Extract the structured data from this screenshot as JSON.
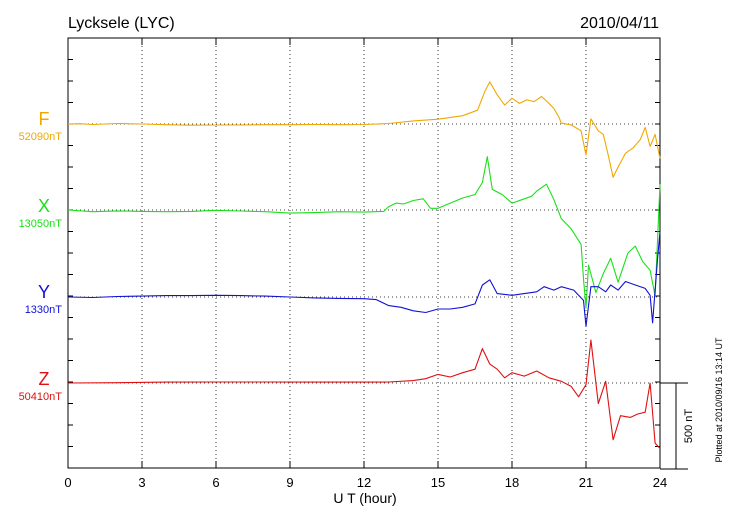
{
  "title": "Lycksele (LYC)",
  "date": "2010/04/11",
  "footnote": "Plotted at 2010/09/16 13:14 UT",
  "chart_data": {
    "type": "line",
    "xlabel": "U T (hour)",
    "xlim": [
      0,
      24
    ],
    "xticks": [
      0,
      3,
      6,
      9,
      12,
      15,
      18,
      21,
      24
    ],
    "xtick_labels": [
      "0",
      "3",
      "6",
      "9",
      "12",
      "15",
      "18",
      "21",
      "24"
    ],
    "grid": true,
    "scale_bar": {
      "label": "500 nT",
      "value_nT": 500
    },
    "series": [
      {
        "name": "F",
        "baseline_label": "52090nT",
        "color": "#f0a800",
        "points": [
          [
            0,
            0
          ],
          [
            0.5,
            2
          ],
          [
            1,
            -3
          ],
          [
            2,
            3
          ],
          [
            3,
            0
          ],
          [
            4,
            -4
          ],
          [
            5,
            -7
          ],
          [
            6,
            -6
          ],
          [
            7,
            -5
          ],
          [
            8,
            -4
          ],
          [
            9,
            -4
          ],
          [
            10,
            -3
          ],
          [
            11,
            -4
          ],
          [
            12,
            -3
          ],
          [
            13,
            3
          ],
          [
            14,
            18
          ],
          [
            15,
            28
          ],
          [
            16,
            48
          ],
          [
            16.6,
            80
          ],
          [
            16.9,
            190
          ],
          [
            17.1,
            245
          ],
          [
            17.4,
            170
          ],
          [
            17.7,
            110
          ],
          [
            18,
            150
          ],
          [
            18.3,
            120
          ],
          [
            18.6,
            140
          ],
          [
            18.9,
            130
          ],
          [
            19.2,
            160
          ],
          [
            19.5,
            120
          ],
          [
            19.7,
            90
          ],
          [
            19.9,
            40
          ],
          [
            20,
            5
          ],
          [
            20.4,
            -5
          ],
          [
            20.8,
            -40
          ],
          [
            21,
            -180
          ],
          [
            21.2,
            30
          ],
          [
            21.5,
            -40
          ],
          [
            21.7,
            -60
          ],
          [
            21.9,
            -180
          ],
          [
            22.1,
            -310
          ],
          [
            22.3,
            -250
          ],
          [
            22.6,
            -170
          ],
          [
            22.9,
            -140
          ],
          [
            23.2,
            -90
          ],
          [
            23.4,
            -20
          ],
          [
            23.6,
            -130
          ],
          [
            23.8,
            -60
          ],
          [
            24,
            -200
          ]
        ]
      },
      {
        "name": "X",
        "baseline_label": "13050nT",
        "color": "#19e019",
        "points": [
          [
            0,
            0
          ],
          [
            1,
            -10
          ],
          [
            2,
            -5
          ],
          [
            3,
            -8
          ],
          [
            4,
            -10
          ],
          [
            5,
            -8
          ],
          [
            6,
            -2
          ],
          [
            7,
            -6
          ],
          [
            8,
            -10
          ],
          [
            9,
            -18
          ],
          [
            10,
            -15
          ],
          [
            11,
            -10
          ],
          [
            12,
            -12
          ],
          [
            12.8,
            -8
          ],
          [
            13,
            20
          ],
          [
            13.3,
            40
          ],
          [
            13.6,
            35
          ],
          [
            14,
            55
          ],
          [
            14.4,
            65
          ],
          [
            14.7,
            10
          ],
          [
            15,
            10
          ],
          [
            15.5,
            40
          ],
          [
            16,
            70
          ],
          [
            16.5,
            90
          ],
          [
            16.8,
            160
          ],
          [
            17,
            310
          ],
          [
            17.2,
            120
          ],
          [
            17.6,
            90
          ],
          [
            18,
            40
          ],
          [
            18.4,
            60
          ],
          [
            18.8,
            80
          ],
          [
            19,
            110
          ],
          [
            19.4,
            150
          ],
          [
            19.7,
            60
          ],
          [
            20,
            -50
          ],
          [
            20.4,
            -110
          ],
          [
            20.8,
            -200
          ],
          [
            20.9,
            -400
          ],
          [
            21,
            -570
          ],
          [
            21.1,
            -320
          ],
          [
            21.4,
            -480
          ],
          [
            21.7,
            -370
          ],
          [
            22,
            -280
          ],
          [
            22.3,
            -420
          ],
          [
            22.7,
            -250
          ],
          [
            23,
            -210
          ],
          [
            23.3,
            -300
          ],
          [
            23.6,
            -350
          ],
          [
            23.8,
            -500
          ],
          [
            24,
            150
          ]
        ]
      },
      {
        "name": "Y",
        "baseline_label": "1330nT",
        "color": "#1010d8",
        "points": [
          [
            0,
            0
          ],
          [
            1,
            -3
          ],
          [
            2,
            3
          ],
          [
            3,
            5
          ],
          [
            4,
            8
          ],
          [
            5,
            8
          ],
          [
            6,
            10
          ],
          [
            7,
            8
          ],
          [
            8,
            5
          ],
          [
            9,
            0
          ],
          [
            10,
            -5
          ],
          [
            11,
            -8
          ],
          [
            12,
            -10
          ],
          [
            12.5,
            -15
          ],
          [
            13,
            -50
          ],
          [
            13.5,
            -60
          ],
          [
            14,
            -80
          ],
          [
            14.5,
            -90
          ],
          [
            15,
            -70
          ],
          [
            15.5,
            -70
          ],
          [
            16,
            -60
          ],
          [
            16.5,
            -40
          ],
          [
            16.8,
            70
          ],
          [
            17.1,
            100
          ],
          [
            17.4,
            20
          ],
          [
            18,
            10
          ],
          [
            18.5,
            20
          ],
          [
            19,
            30
          ],
          [
            19.3,
            60
          ],
          [
            19.7,
            40
          ],
          [
            20,
            60
          ],
          [
            20.5,
            40
          ],
          [
            20.9,
            -20
          ],
          [
            21,
            -170
          ],
          [
            21.2,
            60
          ],
          [
            21.5,
            60
          ],
          [
            21.8,
            30
          ],
          [
            22,
            70
          ],
          [
            22.3,
            40
          ],
          [
            22.6,
            90
          ],
          [
            23,
            70
          ],
          [
            23.4,
            50
          ],
          [
            23.6,
            10
          ],
          [
            23.7,
            -150
          ],
          [
            23.9,
            220
          ],
          [
            24,
            380
          ]
        ]
      },
      {
        "name": "Z",
        "baseline_label": "50410nT",
        "color": "#e01010",
        "points": [
          [
            0,
            0
          ],
          [
            2,
            2
          ],
          [
            4,
            5
          ],
          [
            6,
            6
          ],
          [
            8,
            6
          ],
          [
            10,
            5
          ],
          [
            12,
            5
          ],
          [
            13,
            6
          ],
          [
            14,
            14
          ],
          [
            14.5,
            25
          ],
          [
            15,
            50
          ],
          [
            15.5,
            35
          ],
          [
            16,
            60
          ],
          [
            16.5,
            80
          ],
          [
            16.8,
            200
          ],
          [
            17.1,
            110
          ],
          [
            17.4,
            80
          ],
          [
            17.7,
            30
          ],
          [
            18,
            60
          ],
          [
            18.5,
            40
          ],
          [
            19,
            70
          ],
          [
            19.5,
            30
          ],
          [
            20,
            10
          ],
          [
            20.4,
            -20
          ],
          [
            20.7,
            -80
          ],
          [
            21,
            -10
          ],
          [
            21.2,
            250
          ],
          [
            21.5,
            -120
          ],
          [
            21.8,
            10
          ],
          [
            22.1,
            -330
          ],
          [
            22.4,
            -190
          ],
          [
            22.8,
            -200
          ],
          [
            23.1,
            -180
          ],
          [
            23.4,
            -170
          ],
          [
            23.6,
            0
          ],
          [
            23.8,
            -350
          ],
          [
            24,
            -380
          ]
        ]
      }
    ]
  }
}
